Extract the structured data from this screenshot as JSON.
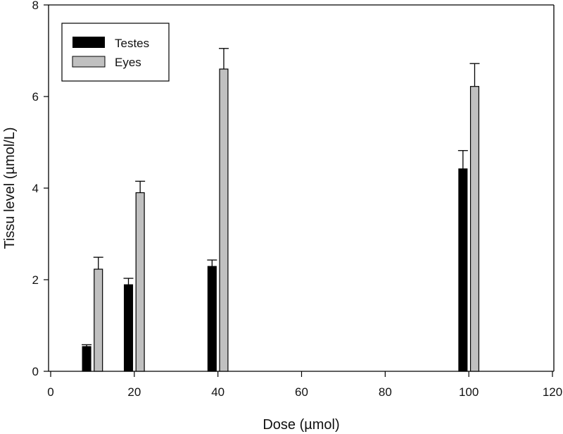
{
  "chart_data": {
    "type": "bar",
    "title": "",
    "xlabel": "Dose (µmol)",
    "ylabel": "Tissu level (µmol/L)",
    "xlim": [
      0,
      120
    ],
    "ylim": [
      0,
      8
    ],
    "xticks": [
      "0",
      "20",
      "40",
      "60",
      "80",
      "100",
      "120"
    ],
    "yticks": [
      "0",
      "2",
      "4",
      "6",
      "8"
    ],
    "grid": false,
    "legend_position": "top-left",
    "categories": [
      10,
      20,
      40,
      100
    ],
    "series": [
      {
        "name": "Testes",
        "color": "#000000",
        "values": [
          0.54,
          1.89,
          2.29,
          4.42
        ],
        "errors": [
          0.04,
          0.14,
          0.14,
          0.4
        ]
      },
      {
        "name": "Eyes",
        "color": "#c0c0c0",
        "values": [
          2.23,
          3.9,
          6.6,
          6.22
        ],
        "errors": [
          0.26,
          0.25,
          0.45,
          0.5
        ]
      }
    ]
  }
}
